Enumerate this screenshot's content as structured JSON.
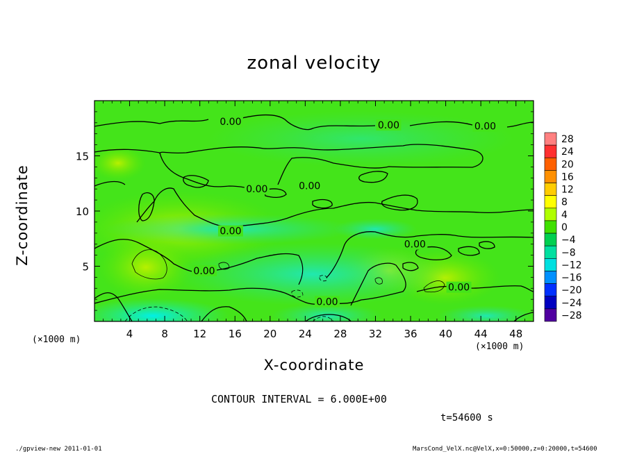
{
  "chart_data": {
    "type": "heatmap",
    "title": "zonal velocity",
    "xlabel": "X-coordinate",
    "ylabel": "Z-coordinate",
    "x_unit": "(×1000 m)",
    "xlim": [
      0,
      50
    ],
    "ylim": [
      0,
      20
    ],
    "x_ticks": [
      4,
      8,
      12,
      16,
      20,
      24,
      28,
      32,
      36,
      40,
      44,
      48
    ],
    "y_ticks": [
      5,
      10,
      15
    ],
    "colorbar": {
      "levels": [
        28,
        24,
        20,
        16,
        12,
        8,
        4,
        0,
        -4,
        -8,
        -12,
        -16,
        -20,
        -24,
        -28
      ],
      "colors": [
        "#ff8080",
        "#ff3030",
        "#ff6000",
        "#ff9000",
        "#ffcc00",
        "#ffff00",
        "#b0ff00",
        "#40e000",
        "#00d050",
        "#00e0a0",
        "#00e0e0",
        "#0090ff",
        "#0030ff",
        "#0000c0",
        "#5000a0"
      ]
    },
    "contour_labels": [
      {
        "text": "0.00",
        "x": 15.5,
        "z": 18.1
      },
      {
        "text": "0.00",
        "x": 33.5,
        "z": 17.8
      },
      {
        "text": "0.00",
        "x": 44.5,
        "z": 17.7
      },
      {
        "text": "0.00",
        "x": 18.5,
        "z": 12.0
      },
      {
        "text": "0.00",
        "x": 24.5,
        "z": 12.3
      },
      {
        "text": "0.00",
        "x": 15.5,
        "z": 8.2
      },
      {
        "text": "0.00",
        "x": 36.5,
        "z": 7.0
      },
      {
        "text": "0.00",
        "x": 12.5,
        "z": 4.6
      },
      {
        "text": "0.00",
        "x": 41.5,
        "z": 3.1
      },
      {
        "text": "0.00",
        "x": 26.5,
        "z": 1.8
      }
    ],
    "contour_interval": "CONTOUR INTERVAL = 6.000E+00",
    "time": "t=54600 s"
  },
  "footer": {
    "left": "./gpview-new  2011-01-01",
    "right": "MarsCond_VelX.nc@VelX,x=0:50000,z=0:20000,t=54600"
  }
}
